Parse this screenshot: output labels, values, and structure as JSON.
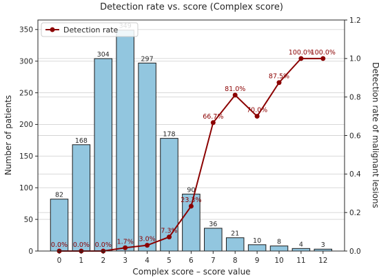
{
  "chart_data": {
    "type": "bar",
    "title": "Detection rate vs. score (Complex score)",
    "xlabel": "Complex score – score value",
    "ylabel": "Number of patients",
    "y2label": "Detection rate of malignant lesions",
    "categories": [
      "0",
      "1",
      "2",
      "3",
      "4",
      "5",
      "6",
      "7",
      "8",
      "9",
      "10",
      "11",
      "12"
    ],
    "ylim": [
      0,
      365
    ],
    "yticks": [
      0,
      50,
      100,
      150,
      200,
      250,
      300,
      350
    ],
    "y2lim": [
      0,
      1.2
    ],
    "y2ticks": [
      "0.0",
      "0.2",
      "0.4",
      "0.6",
      "0.8",
      "1.0",
      "1.2"
    ],
    "grid": true,
    "legend_position": "top-left",
    "series": [
      {
        "kind": "bar",
        "values": [
          82,
          168,
          304,
          349,
          297,
          178,
          90,
          36,
          21,
          10,
          8,
          4,
          3
        ],
        "labels": [
          "82",
          "168",
          "304",
          "349",
          "297",
          "178",
          "90",
          "36",
          "21",
          "10",
          "8",
          "4",
          "3"
        ],
        "color": "#92c6df"
      },
      {
        "kind": "line",
        "name": "Detection rate",
        "values": [
          0.0,
          0.0,
          0.0,
          0.017,
          0.03,
          0.073,
          0.233,
          0.667,
          0.81,
          0.7,
          0.875,
          1.0,
          1.0
        ],
        "labels": [
          "0.0%",
          "0.0%",
          "0.0%",
          "1.7%",
          "3.0%",
          "7.3%",
          "23.3%",
          "66.7%",
          "81.0%",
          "70.0%",
          "87.5%",
          "100.0%",
          "100.0%"
        ],
        "color": "#8b0000"
      }
    ]
  }
}
